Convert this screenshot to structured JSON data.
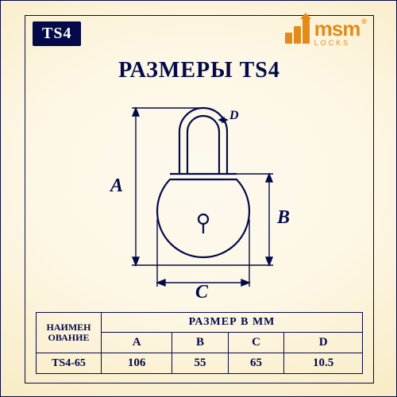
{
  "badge": "TS4",
  "logo": {
    "main": "msm",
    "sub": "LOСKS",
    "reg": "®"
  },
  "title": "РАЗМЕРЫ TS4",
  "diagram": {
    "stroke": "#030a4a",
    "stroke_width": 2.2,
    "labels": {
      "A": "A",
      "B": "B",
      "C": "C",
      "D": "D"
    },
    "body_radius": 58,
    "shackle": {
      "outer_r": 30,
      "inner_r": 20,
      "height": 42
    }
  },
  "table": {
    "row_header": "НАИМЕН\nОВАНИЕ",
    "size_header": "РАЗМЕР В ММ",
    "cols": [
      "A",
      "B",
      "C",
      "D"
    ],
    "rows": [
      {
        "name": "TS4-65",
        "A": "106",
        "B": "55",
        "C": "65",
        "D": "10.5"
      }
    ]
  },
  "colors": {
    "frame": "#030a4a",
    "accent": "#e38b1a",
    "bg_inner": "#fdf9ed",
    "bg_outer": "#f2dfa4"
  }
}
